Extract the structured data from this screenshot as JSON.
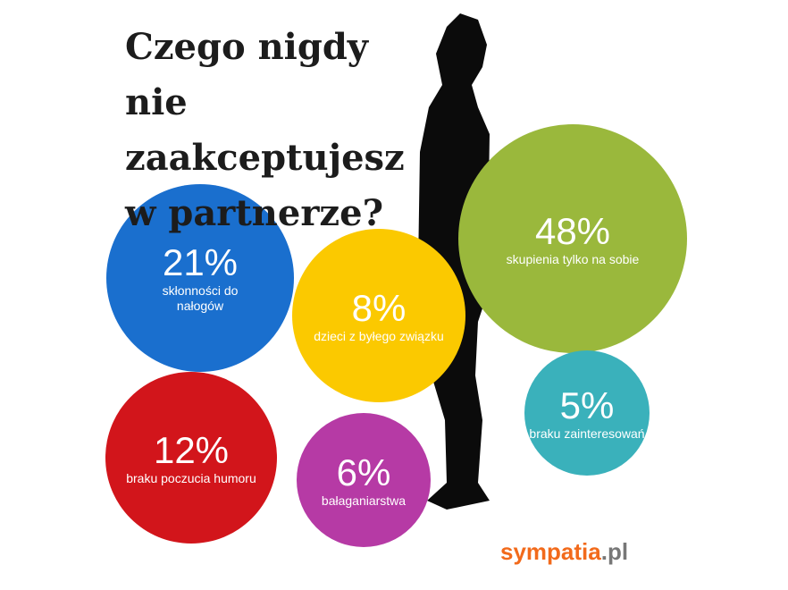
{
  "chart_data": {
    "type": "bubble",
    "title": "Czego nigdy nie zaakceptujesz w partnerze?",
    "categories": [
      "skupienia tylko na sobie",
      "skłonności do nałogów",
      "dzieci z byłego związku",
      "braku poczucia humoru",
      "bałaganiarstwa",
      "braku zainteresowań"
    ],
    "values": [
      48,
      21,
      8,
      12,
      6,
      5
    ],
    "value_labels": [
      "48%",
      "21%",
      "8%",
      "12%",
      "6%",
      "5%"
    ],
    "colors": [
      "#9ab83c",
      "#1a6fce",
      "#fbc900",
      "#d2151b",
      "#b63aa5",
      "#3ab1bb"
    ]
  },
  "logo": {
    "name": "sympatia",
    "suffix": ".pl"
  }
}
